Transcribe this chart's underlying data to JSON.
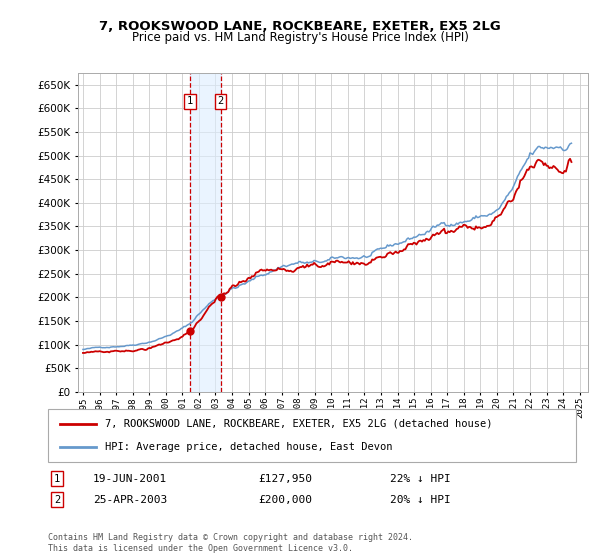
{
  "title": "7, ROOKSWOOD LANE, ROCKBEARE, EXETER, EX5 2LG",
  "subtitle": "Price paid vs. HM Land Registry's House Price Index (HPI)",
  "ylim": [
    0,
    675000
  ],
  "yticks": [
    0,
    50000,
    100000,
    150000,
    200000,
    250000,
    300000,
    350000,
    400000,
    450000,
    500000,
    550000,
    600000,
    650000
  ],
  "xlim_start": 1994.7,
  "xlim_end": 2025.5,
  "red_line_color": "#cc0000",
  "blue_line_color": "#6699cc",
  "sale1_date": 2001.46,
  "sale1_price": 127950,
  "sale2_date": 2003.32,
  "sale2_price": 200000,
  "marker_color": "#cc0000",
  "vline_color": "#cc0000",
  "shade_color": "#ddeeff",
  "legend_red_label": "7, ROOKSWOOD LANE, ROCKBEARE, EXETER, EX5 2LG (detached house)",
  "legend_blue_label": "HPI: Average price, detached house, East Devon",
  "annotation1_date": "19-JUN-2001",
  "annotation1_price": "£127,950",
  "annotation1_hpi": "22% ↓ HPI",
  "annotation2_date": "25-APR-2003",
  "annotation2_price": "£200,000",
  "annotation2_hpi": "20% ↓ HPI",
  "footnote": "Contains HM Land Registry data © Crown copyright and database right 2024.\nThis data is licensed under the Open Government Licence v3.0.",
  "background_color": "#ffffff",
  "grid_color": "#cccccc"
}
